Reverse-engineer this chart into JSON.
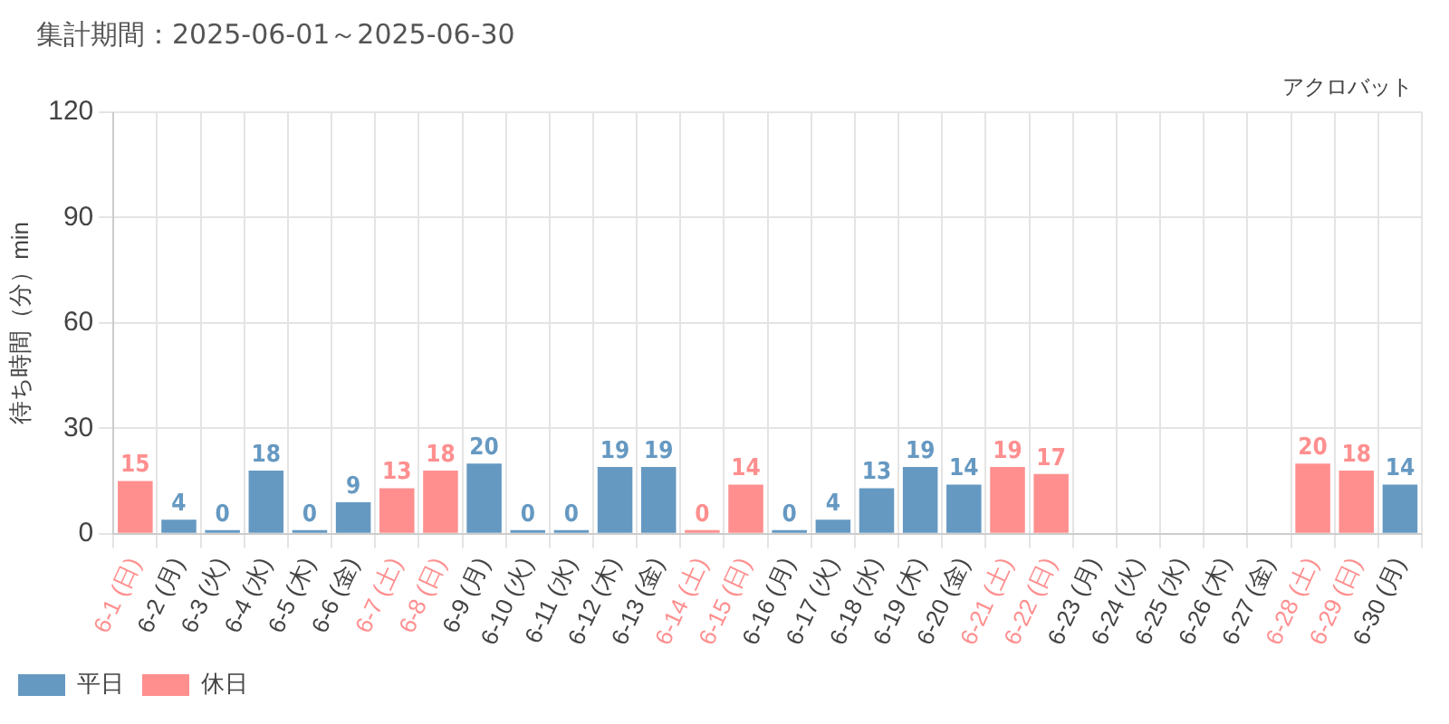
{
  "chart_data": {
    "type": "bar",
    "title": "集計期間：2025-06-01～2025-06-30",
    "subtitle": "アクロバット",
    "ylabel": "待ち時間（分）min",
    "categories": [
      "6-1 (日)",
      "6-2 (月)",
      "6-3 (火)",
      "6-4 (水)",
      "6-5 (木)",
      "6-6 (金)",
      "6-7 (土)",
      "6-8 (日)",
      "6-9 (月)",
      "6-10 (火)",
      "6-11 (水)",
      "6-12 (木)",
      "6-13 (金)",
      "6-14 (土)",
      "6-15 (日)",
      "6-16 (月)",
      "6-17 (火)",
      "6-18 (水)",
      "6-19 (木)",
      "6-20 (金)",
      "6-21 (土)",
      "6-22 (日)",
      "6-23 (月)",
      "6-24 (火)",
      "6-25 (水)",
      "6-26 (木)",
      "6-27 (金)",
      "6-28 (土)",
      "6-29 (日)",
      "6-30 (月)"
    ],
    "series": [
      {
        "name": "平日",
        "color": "#6699c2",
        "values": [
          null,
          4,
          0,
          18,
          0,
          9,
          null,
          null,
          20,
          0,
          0,
          19,
          19,
          null,
          null,
          0,
          4,
          13,
          19,
          14,
          null,
          null,
          null,
          null,
          null,
          null,
          null,
          null,
          null,
          14
        ]
      },
      {
        "name": "休日",
        "color": "#ff8f8f",
        "values": [
          15,
          null,
          null,
          null,
          null,
          null,
          13,
          18,
          null,
          null,
          null,
          null,
          null,
          0,
          14,
          null,
          null,
          null,
          null,
          null,
          19,
          17,
          null,
          null,
          null,
          null,
          null,
          20,
          18,
          null
        ]
      }
    ],
    "stacked": true,
    "ylim": [
      0,
      120
    ],
    "yticks": [
      0,
      30,
      60,
      90,
      120
    ],
    "grid": true,
    "legend": "bottom left",
    "data_labels": true
  }
}
